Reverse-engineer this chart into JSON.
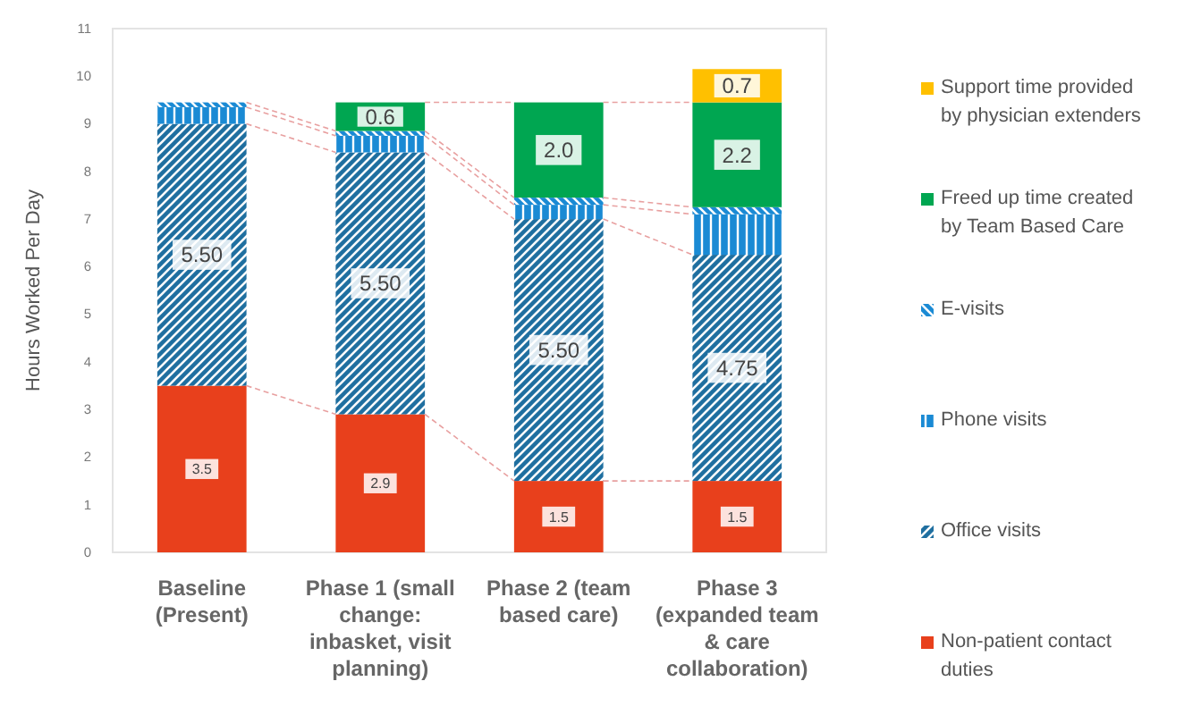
{
  "chart_data": {
    "type": "bar",
    "stacked": true,
    "ylabel": "Hours Worked Per Day",
    "categories": [
      "Baseline (Present)",
      "Phase 1 (small change: inbasket, visit planning)",
      "Phase 2 (team based care)",
      "Phase 3 (expanded team & care collaboration)"
    ],
    "series": [
      {
        "name": "Non-patient contact duties",
        "color": "#e8401c",
        "values": [
          3.5,
          2.9,
          1.5,
          1.5
        ],
        "value_labels": [
          "3.5",
          "2.9",
          "1.5",
          "1.5"
        ]
      },
      {
        "name": "Office visits",
        "color": "#1f6fa0",
        "values": [
          5.5,
          5.5,
          5.5,
          4.75
        ],
        "value_labels": [
          "5.50",
          "5.50",
          "5.50",
          "4.75"
        ]
      },
      {
        "name": "Phone visits",
        "color": "#1a8ad4",
        "values": [
          0.35,
          0.35,
          0.3,
          0.85
        ]
      },
      {
        "name": "E-visits",
        "color": "#1a8ad4",
        "values": [
          0.1,
          0.1,
          0.15,
          0.15
        ]
      },
      {
        "name": "Freed up time created by Team Based Care",
        "color": "#00a651",
        "values": [
          null,
          0.6,
          2.0,
          2.2
        ],
        "value_labels": [
          null,
          "0.6",
          "2.0",
          "2.2"
        ]
      },
      {
        "name": "Support time provided by physician extenders",
        "color": "#ffc000",
        "values": [
          null,
          null,
          null,
          0.7
        ],
        "value_labels": [
          null,
          null,
          null,
          "0.7"
        ]
      }
    ],
    "ylim": [
      0,
      11
    ],
    "yticks": [
      0,
      1,
      2,
      3,
      4,
      5,
      6,
      7,
      8,
      9,
      10,
      11
    ],
    "grid": false,
    "legend": "right"
  }
}
